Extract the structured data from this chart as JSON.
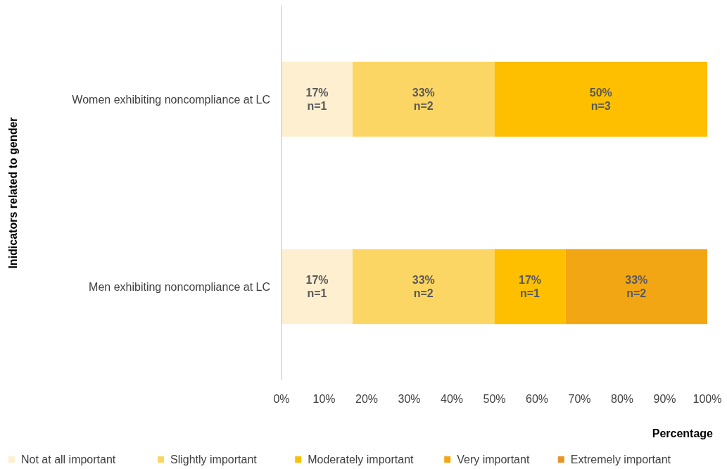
{
  "chart_data": {
    "type": "bar",
    "orientation": "horizontal",
    "stacked": true,
    "xlabel": "Percentage",
    "ylabel": "Inidicators related to gender",
    "categories": [
      "Women exhibiting noncompliance at LC",
      "Men exhibiting noncompliance at LC"
    ],
    "xlim": [
      0,
      100
    ],
    "xticks": [
      {
        "value": 0,
        "label": "0%"
      },
      {
        "value": 10,
        "label": "10%"
      },
      {
        "value": 20,
        "label": "20%"
      },
      {
        "value": 30,
        "label": "30%"
      },
      {
        "value": 40,
        "label": "40%"
      },
      {
        "value": 50,
        "label": "50%"
      },
      {
        "value": 60,
        "label": "60%"
      },
      {
        "value": 70,
        "label": "70%"
      },
      {
        "value": 80,
        "label": "80%"
      },
      {
        "value": 90,
        "label": "90%"
      },
      {
        "value": 100,
        "label": "100%"
      }
    ],
    "series": [
      {
        "name": "Not at all important",
        "color": "#fdefd0",
        "values": [
          16.7,
          16.7
        ],
        "value_labels": [
          "17%\nn=1",
          "17%\nn=1"
        ]
      },
      {
        "name": "Slightly important",
        "color": "#fcd665",
        "values": [
          33.3,
          33.3
        ],
        "value_labels": [
          "33%\nn=2",
          "33%\nn=2"
        ]
      },
      {
        "name": "Moderately important",
        "color": "#fdbf00",
        "values": [
          50,
          16.7
        ],
        "value_labels": [
          "50%\nn=3",
          "17%\nn=1"
        ]
      },
      {
        "name": "Very important",
        "color": "#f3a614",
        "values": [
          null,
          33.3
        ],
        "value_labels": [
          null,
          "33%\nn=2"
        ]
      },
      {
        "name": "Extremely important",
        "color": "#e8932a",
        "values": [
          null,
          null
        ],
        "value_labels": [
          null,
          null
        ]
      }
    ],
    "grid": false,
    "legend": "bottom"
  }
}
